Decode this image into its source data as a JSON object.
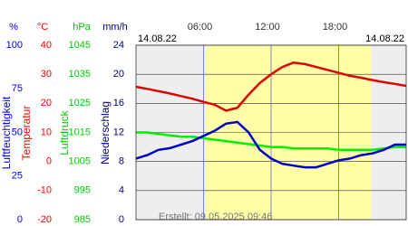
{
  "chart_data": {
    "type": "line",
    "date_left": "14.08.22",
    "date_right": "14.08.22",
    "footer": "Erstellt: 09.05.2025 09:46",
    "xlim": [
      0,
      24
    ],
    "xticks": [
      {
        "value": 6,
        "label": "06:00"
      },
      {
        "value": 12,
        "label": "12:00"
      },
      {
        "value": 18,
        "label": "18:00"
      }
    ],
    "daylight": [
      6.2,
      20.9
    ],
    "axes": [
      {
        "unit": "%",
        "label": "Luftfeuchtigkeit",
        "color": "#0000ff",
        "ylim": [
          0,
          100
        ],
        "yticks": [
          0,
          25,
          50,
          75,
          100
        ]
      },
      {
        "unit": "°C",
        "label": "Temperatur",
        "color": "#ff0000",
        "ylim": [
          -20,
          40
        ],
        "yticks": [
          -20,
          -10,
          0,
          10,
          20,
          30,
          40
        ],
        "grid": true
      },
      {
        "unit": "hPa",
        "label": "Luftdruck",
        "color": "#00cc00",
        "ylim": [
          985,
          1045
        ],
        "yticks": [
          985,
          995,
          1005,
          1015,
          1025,
          1035,
          1045
        ]
      },
      {
        "unit": "mm/h",
        "label": "Niederschlag",
        "color": "#000080",
        "ylim": [
          0,
          24
        ],
        "yticks": [
          0,
          4,
          8,
          12,
          16,
          20,
          24
        ]
      }
    ],
    "x": [
      0,
      1,
      2,
      3,
      4,
      5,
      6,
      7,
      8,
      9,
      10,
      11,
      12,
      13,
      14,
      15,
      16,
      17,
      18,
      19,
      20,
      21,
      22,
      23,
      24
    ],
    "series": [
      {
        "color": "#00ee00",
        "axis": 2,
        "values": [
          1015,
          1015,
          1014.5,
          1014,
          1013.5,
          1013.5,
          1013,
          1012.5,
          1012,
          1011.5,
          1011,
          1010.5,
          1010,
          1010,
          1009.5,
          1009.5,
          1009.5,
          1009.5,
          1009,
          1009,
          1009,
          1009,
          1009.5,
          1010,
          1010
        ]
      },
      {
        "color": "#0000cc",
        "axis": 0,
        "values": [
          35,
          37,
          40,
          41,
          43,
          45,
          48,
          51,
          55,
          56,
          50,
          40,
          35,
          32,
          31,
          30,
          30,
          32,
          34,
          35,
          37,
          38,
          40,
          43,
          43
        ]
      },
      {
        "color": "#dd0000",
        "axis": 1,
        "values": [
          25.7,
          25,
          24.2,
          23.4,
          22.5,
          21.6,
          20.5,
          19.5,
          17.5,
          18.5,
          23,
          27,
          30,
          32.5,
          34,
          33.5,
          32.5,
          31.5,
          30.5,
          29.5,
          28.8,
          28,
          27.3,
          26.7,
          26
        ]
      }
    ]
  }
}
